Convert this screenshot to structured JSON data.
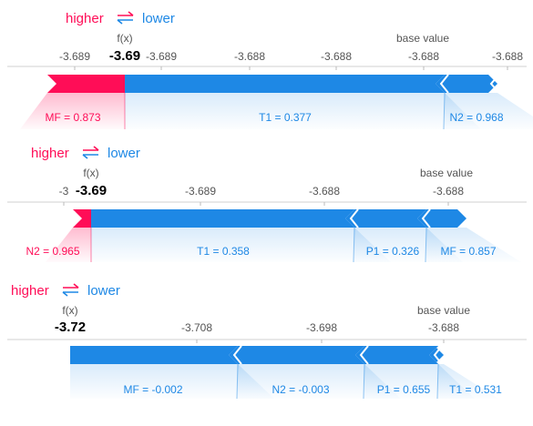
{
  "chart_data": [
    {
      "type": "force",
      "legend": {
        "higher": "higher",
        "lower": "lower"
      },
      "fx_label": "f(x)",
      "fx_value": "-3.69",
      "base_label": "base value",
      "ticks": [
        "-3.689",
        "-3.689",
        "-3.688",
        "-3.688",
        "-3.688",
        "-3.688"
      ],
      "colors": {
        "positive": "#ff0d57",
        "negative": "#1e88e5",
        "axis": "#555555"
      },
      "higher": [
        {
          "label": "MF = 0.873"
        }
      ],
      "lower": [
        {
          "label": "T1 = 0.377"
        },
        {
          "label": "N2 = 0.968"
        }
      ]
    },
    {
      "type": "force",
      "legend": {
        "higher": "higher",
        "lower": "lower"
      },
      "fx_label": "f(x)",
      "fx_value": "-3.69",
      "base_label": "base value",
      "ticks": [
        "-3",
        "-3.689",
        "-3.688",
        "-3.688"
      ],
      "colors": {
        "positive": "#ff0d57",
        "negative": "#1e88e5",
        "axis": "#555555"
      },
      "higher": [
        {
          "label": "N2 = 0.965"
        }
      ],
      "lower": [
        {
          "label": "T1 = 0.358"
        },
        {
          "label": "P1 = 0.326"
        },
        {
          "label": "MF = 0.857"
        }
      ]
    },
    {
      "type": "force",
      "legend": {
        "higher": "higher",
        "lower": "lower"
      },
      "fx_label": "f(x)",
      "fx_value": "-3.72",
      "base_label": "base value",
      "ticks": [
        "-3.708",
        "-3.698",
        "-3.688"
      ],
      "colors": {
        "positive": "#ff0d57",
        "negative": "#1e88e5",
        "axis": "#555555"
      },
      "higher": [],
      "lower": [
        {
          "label": "MF = -0.002"
        },
        {
          "label": "N2 = -0.003"
        },
        {
          "label": "P1 = 0.655"
        },
        {
          "label": "T1 = 0.531"
        }
      ]
    }
  ]
}
